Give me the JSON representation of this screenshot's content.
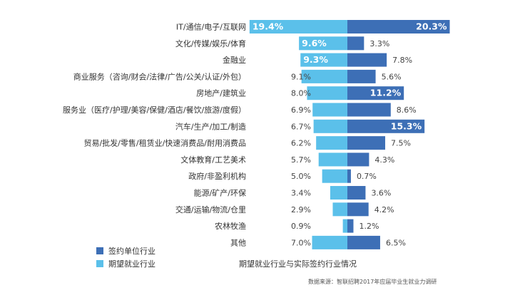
{
  "chart_data": {
    "type": "bar",
    "orientation": "horizontal-diverging",
    "title": "期望就业行业与实际签约行业情况",
    "source": "数据来源：智联招聘2017年应届毕业生就业力调研",
    "categories": [
      "IT/通信/电子/互联网",
      "文化/传媒/娱乐/体育",
      "金融业",
      "商业服务（咨询/财会/法律/广告/公关/认证/外包）",
      "房地产/建筑业",
      "服务业（医疗/护理/美容/保健/酒店/餐饮/旅游/度假）",
      "汽车/生产/加工/制造",
      "贸易/批发/零售/租赁业/快速消费品/耐用消费品",
      "文体教育/工艺美术",
      "政府/非盈利机构",
      "能源/矿产/环保",
      "交通/运输/物流/仓里",
      "农林牧渔",
      "其他"
    ],
    "series": [
      {
        "name": "期望就业行业",
        "color": "#5bc0ea",
        "direction": "left",
        "values": [
          19.4,
          9.6,
          9.3,
          9.1,
          8.0,
          6.9,
          6.7,
          6.2,
          5.7,
          5.0,
          3.4,
          2.9,
          0.9,
          7.0
        ],
        "labels": [
          "19.4%",
          "9.6%",
          "9.3%",
          "9.1%",
          "8.0%",
          "6.9%",
          "6.7%",
          "6.2%",
          "5.7%",
          "5.0%",
          "3.4%",
          "2.9%",
          "0.9%",
          "7.0%"
        ]
      },
      {
        "name": "签约单位行业",
        "color": "#3d6fb6",
        "direction": "right",
        "values": [
          20.3,
          3.3,
          7.8,
          5.6,
          11.2,
          8.6,
          15.3,
          7.5,
          4.3,
          0.7,
          3.6,
          4.2,
          1.2,
          6.5
        ],
        "labels": [
          "20.3%",
          "3.3%",
          "7.8%",
          "5.6%",
          "11.2%",
          "8.6%",
          "15.3%",
          "7.5%",
          "4.3%",
          "0.7%",
          "3.6%",
          "4.2%",
          "1.2%",
          "6.5%"
        ]
      }
    ],
    "legend": [
      "签约单位行业",
      "期望就业行业"
    ],
    "legend_position": "bottom-left",
    "grid": false
  }
}
